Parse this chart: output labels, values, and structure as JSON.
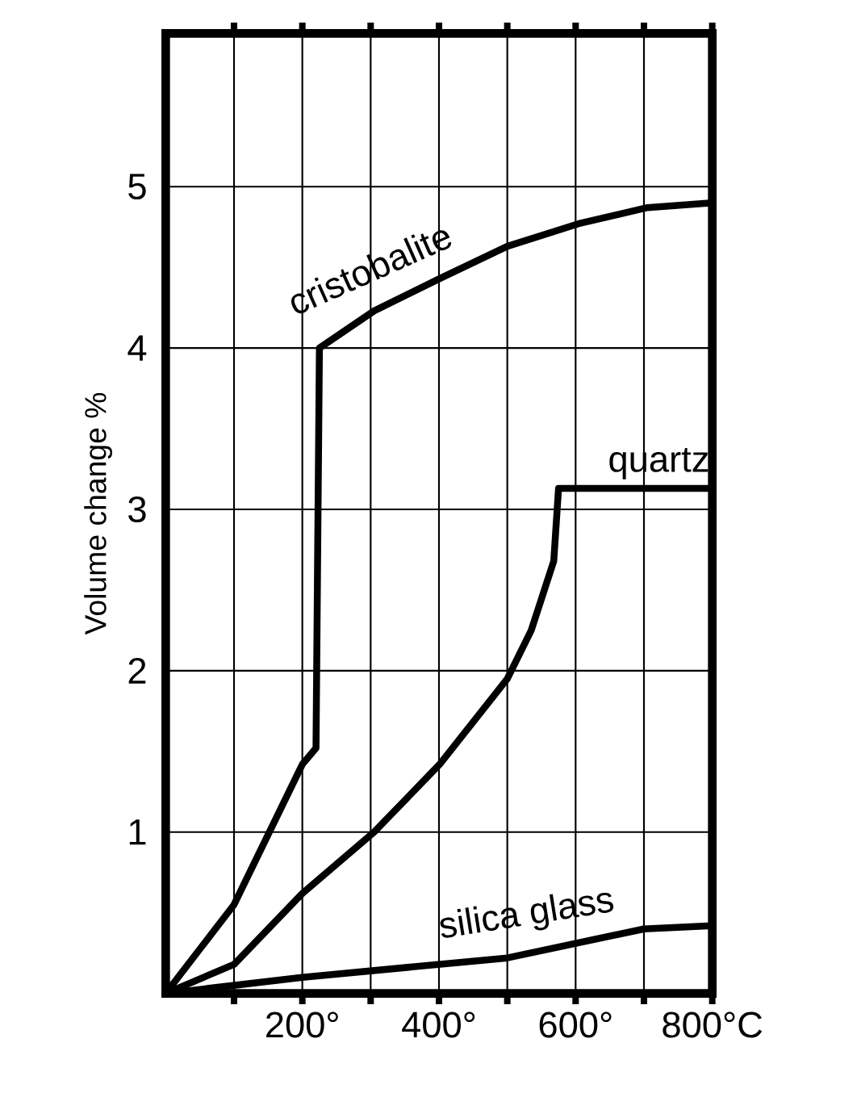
{
  "chart_data": {
    "type": "line",
    "ylabel": "Volume change %",
    "xlim": [
      0,
      800
    ],
    "ylim": [
      0,
      5.95
    ],
    "xticks": [
      {
        "value": 100,
        "label": null
      },
      {
        "value": 200,
        "label": "200°"
      },
      {
        "value": 300,
        "label": null
      },
      {
        "value": 400,
        "label": "400°"
      },
      {
        "value": 500,
        "label": null
      },
      {
        "value": 600,
        "label": "600°"
      },
      {
        "value": 700,
        "label": null
      },
      {
        "value": 800,
        "label": "800°C"
      }
    ],
    "yticks": [
      1,
      2,
      3,
      4,
      5
    ],
    "grid": true,
    "legend": false,
    "marker": "none",
    "line_style": "solid",
    "series": [
      {
        "name": "cristobalite",
        "color": "#000000",
        "x": [
          0,
          100,
          200,
          220,
          225,
          305,
          401,
          500,
          604,
          705,
          800
        ],
        "values": [
          0,
          0.55,
          1.42,
          1.52,
          4.0,
          4.23,
          4.43,
          4.63,
          4.77,
          4.87,
          4.9
        ]
      },
      {
        "name": "quartz",
        "color": "#000000",
        "x": [
          0,
          100,
          200,
          305,
          401,
          500,
          535,
          568,
          575,
          800
        ],
        "values": [
          0,
          0.18,
          0.62,
          1.0,
          1.42,
          1.95,
          2.25,
          2.68,
          3.13,
          3.13
        ]
      },
      {
        "name": "silica glass",
        "color": "#000000",
        "x": [
          0,
          200,
          500,
          700,
          800
        ],
        "values": [
          0,
          0.1,
          0.22,
          0.4,
          0.42
        ]
      }
    ]
  }
}
